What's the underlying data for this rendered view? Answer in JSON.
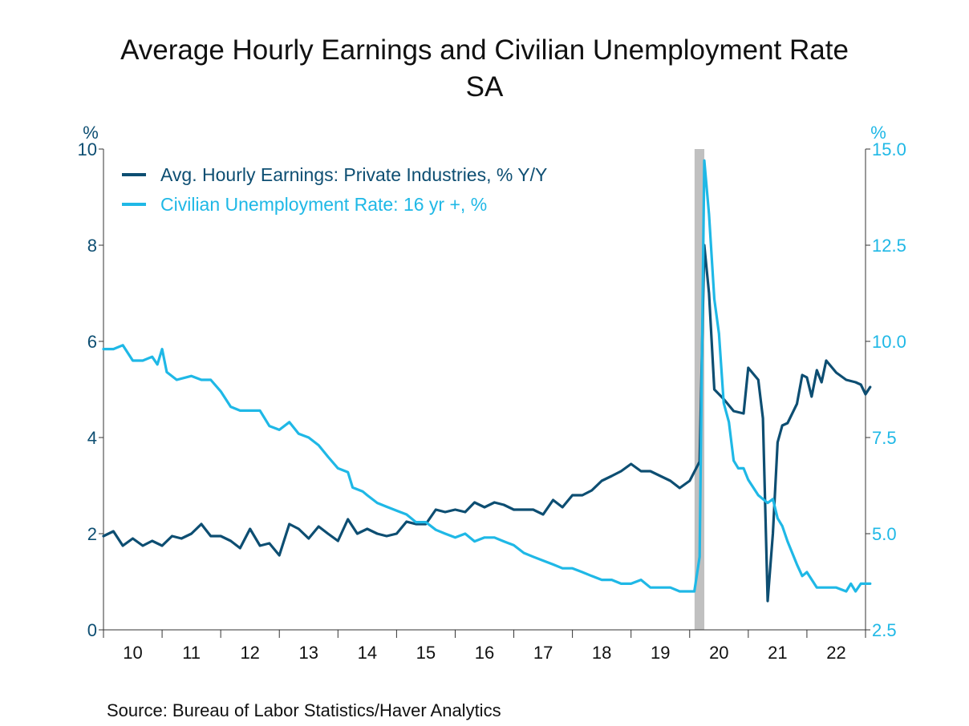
{
  "chart_data": {
    "type": "line",
    "title": "Average Hourly Earnings and Civilian Unemployment Rate",
    "subtitle": "SA",
    "source": "Source:  Bureau of Labor Statistics/Haver Analytics",
    "left_axis": {
      "unit": "%",
      "min": 0,
      "max": 10,
      "ticks": [
        "0",
        "2",
        "4",
        "6",
        "8",
        "10"
      ]
    },
    "right_axis": {
      "unit": "%",
      "min": 2.5,
      "max": 15.0,
      "ticks": [
        "2.5",
        "5.0",
        "7.5",
        "10.0",
        "12.5",
        "15.0"
      ]
    },
    "x_axis": {
      "start": 2010,
      "end": 2023,
      "tick_labels": [
        "10",
        "11",
        "12",
        "13",
        "14",
        "15",
        "16",
        "17",
        "18",
        "19",
        "20",
        "21",
        "22"
      ]
    },
    "legend_position": "top-left",
    "recession_band": {
      "start": "2020-02",
      "end": "2020-04",
      "color": "#c0c0c0"
    },
    "series": [
      {
        "name": "Avg. Hourly Earnings: Private Industries, % Y/Y",
        "axis": "left",
        "color": "#0d4e72",
        "points": [
          [
            2010.0,
            1.95
          ],
          [
            2010.17,
            2.05
          ],
          [
            2010.33,
            1.75
          ],
          [
            2010.5,
            1.9
          ],
          [
            2010.67,
            1.75
          ],
          [
            2010.83,
            1.85
          ],
          [
            2011.0,
            1.75
          ],
          [
            2011.17,
            1.95
          ],
          [
            2011.33,
            1.9
          ],
          [
            2011.5,
            2.0
          ],
          [
            2011.67,
            2.2
          ],
          [
            2011.83,
            1.95
          ],
          [
            2012.0,
            1.95
          ],
          [
            2012.17,
            1.85
          ],
          [
            2012.33,
            1.7
          ],
          [
            2012.5,
            2.1
          ],
          [
            2012.67,
            1.75
          ],
          [
            2012.83,
            1.8
          ],
          [
            2013.0,
            1.55
          ],
          [
            2013.17,
            2.2
          ],
          [
            2013.33,
            2.1
          ],
          [
            2013.5,
            1.9
          ],
          [
            2013.67,
            2.15
          ],
          [
            2013.83,
            2.0
          ],
          [
            2014.0,
            1.85
          ],
          [
            2014.17,
            2.3
          ],
          [
            2014.33,
            2.0
          ],
          [
            2014.5,
            2.1
          ],
          [
            2014.67,
            2.0
          ],
          [
            2014.83,
            1.95
          ],
          [
            2015.0,
            2.0
          ],
          [
            2015.17,
            2.25
          ],
          [
            2015.33,
            2.2
          ],
          [
            2015.5,
            2.2
          ],
          [
            2015.67,
            2.5
          ],
          [
            2015.83,
            2.45
          ],
          [
            2016.0,
            2.5
          ],
          [
            2016.17,
            2.45
          ],
          [
            2016.33,
            2.65
          ],
          [
            2016.5,
            2.55
          ],
          [
            2016.67,
            2.65
          ],
          [
            2016.83,
            2.6
          ],
          [
            2017.0,
            2.5
          ],
          [
            2017.17,
            2.5
          ],
          [
            2017.33,
            2.5
          ],
          [
            2017.5,
            2.4
          ],
          [
            2017.67,
            2.7
          ],
          [
            2017.83,
            2.55
          ],
          [
            2018.0,
            2.8
          ],
          [
            2018.17,
            2.8
          ],
          [
            2018.33,
            2.9
          ],
          [
            2018.5,
            3.1
          ],
          [
            2018.67,
            3.2
          ],
          [
            2018.83,
            3.3
          ],
          [
            2019.0,
            3.45
          ],
          [
            2019.17,
            3.3
          ],
          [
            2019.33,
            3.3
          ],
          [
            2019.5,
            3.2
          ],
          [
            2019.67,
            3.1
          ],
          [
            2019.83,
            2.95
          ],
          [
            2020.0,
            3.1
          ],
          [
            2020.17,
            3.5
          ],
          [
            2020.25,
            8.0
          ],
          [
            2020.33,
            7.0
          ],
          [
            2020.42,
            5.0
          ],
          [
            2020.58,
            4.8
          ],
          [
            2020.75,
            4.55
          ],
          [
            2020.92,
            4.5
          ],
          [
            2021.0,
            5.45
          ],
          [
            2021.17,
            5.2
          ],
          [
            2021.25,
            4.4
          ],
          [
            2021.33,
            0.6
          ],
          [
            2021.42,
            2.0
          ],
          [
            2021.5,
            3.9
          ],
          [
            2021.58,
            4.25
          ],
          [
            2021.67,
            4.3
          ],
          [
            2021.83,
            4.7
          ],
          [
            2021.92,
            5.3
          ],
          [
            2022.0,
            5.25
          ],
          [
            2022.08,
            4.85
          ],
          [
            2022.17,
            5.4
          ],
          [
            2022.25,
            5.15
          ],
          [
            2022.33,
            5.6
          ],
          [
            2022.5,
            5.35
          ],
          [
            2022.67,
            5.2
          ],
          [
            2022.83,
            5.15
          ],
          [
            2022.92,
            5.1
          ],
          [
            2023.0,
            4.9
          ],
          [
            2023.08,
            5.05
          ]
        ]
      },
      {
        "name": "Civilian Unemployment Rate: 16 yr +, %",
        "axis": "right",
        "color": "#1fb8e6",
        "points": [
          [
            2010.0,
            9.8
          ],
          [
            2010.17,
            9.8
          ],
          [
            2010.33,
            9.9
          ],
          [
            2010.5,
            9.5
          ],
          [
            2010.67,
            9.5
          ],
          [
            2010.83,
            9.6
          ],
          [
            2010.92,
            9.4
          ],
          [
            2011.0,
            9.8
          ],
          [
            2011.08,
            9.2
          ],
          [
            2011.25,
            9.0
          ],
          [
            2011.5,
            9.1
          ],
          [
            2011.67,
            9.0
          ],
          [
            2011.83,
            9.0
          ],
          [
            2012.0,
            8.7
          ],
          [
            2012.17,
            8.3
          ],
          [
            2012.33,
            8.2
          ],
          [
            2012.5,
            8.2
          ],
          [
            2012.67,
            8.2
          ],
          [
            2012.83,
            7.8
          ],
          [
            2013.0,
            7.7
          ],
          [
            2013.17,
            7.9
          ],
          [
            2013.33,
            7.6
          ],
          [
            2013.5,
            7.5
          ],
          [
            2013.67,
            7.3
          ],
          [
            2013.83,
            7.0
          ],
          [
            2014.0,
            6.7
          ],
          [
            2014.17,
            6.6
          ],
          [
            2014.25,
            6.2
          ],
          [
            2014.42,
            6.1
          ],
          [
            2014.5,
            6.0
          ],
          [
            2014.67,
            5.8
          ],
          [
            2014.83,
            5.7
          ],
          [
            2015.0,
            5.6
          ],
          [
            2015.17,
            5.5
          ],
          [
            2015.33,
            5.3
          ],
          [
            2015.5,
            5.3
          ],
          [
            2015.67,
            5.1
          ],
          [
            2015.83,
            5.0
          ],
          [
            2016.0,
            4.9
          ],
          [
            2016.17,
            5.0
          ],
          [
            2016.33,
            4.8
          ],
          [
            2016.5,
            4.9
          ],
          [
            2016.67,
            4.9
          ],
          [
            2016.83,
            4.8
          ],
          [
            2017.0,
            4.7
          ],
          [
            2017.17,
            4.5
          ],
          [
            2017.33,
            4.4
          ],
          [
            2017.5,
            4.3
          ],
          [
            2017.67,
            4.2
          ],
          [
            2017.83,
            4.1
          ],
          [
            2018.0,
            4.1
          ],
          [
            2018.17,
            4.0
          ],
          [
            2018.33,
            3.9
          ],
          [
            2018.5,
            3.8
          ],
          [
            2018.67,
            3.8
          ],
          [
            2018.83,
            3.7
          ],
          [
            2019.0,
            3.7
          ],
          [
            2019.17,
            3.8
          ],
          [
            2019.33,
            3.6
          ],
          [
            2019.5,
            3.6
          ],
          [
            2019.67,
            3.6
          ],
          [
            2019.83,
            3.5
          ],
          [
            2020.0,
            3.5
          ],
          [
            2020.08,
            3.5
          ],
          [
            2020.17,
            4.4
          ],
          [
            2020.25,
            14.7
          ],
          [
            2020.33,
            13.3
          ],
          [
            2020.42,
            11.1
          ],
          [
            2020.5,
            10.2
          ],
          [
            2020.58,
            8.4
          ],
          [
            2020.67,
            7.9
          ],
          [
            2020.75,
            6.9
          ],
          [
            2020.83,
            6.7
          ],
          [
            2020.92,
            6.7
          ],
          [
            2021.0,
            6.4
          ],
          [
            2021.17,
            6.0
          ],
          [
            2021.33,
            5.8
          ],
          [
            2021.42,
            5.9
          ],
          [
            2021.5,
            5.4
          ],
          [
            2021.58,
            5.2
          ],
          [
            2021.67,
            4.8
          ],
          [
            2021.83,
            4.2
          ],
          [
            2021.92,
            3.9
          ],
          [
            2022.0,
            4.0
          ],
          [
            2022.17,
            3.6
          ],
          [
            2022.33,
            3.6
          ],
          [
            2022.5,
            3.6
          ],
          [
            2022.67,
            3.5
          ],
          [
            2022.75,
            3.7
          ],
          [
            2022.83,
            3.5
          ],
          [
            2022.92,
            3.7
          ],
          [
            2023.0,
            3.7
          ],
          [
            2023.08,
            3.7
          ]
        ]
      }
    ]
  }
}
